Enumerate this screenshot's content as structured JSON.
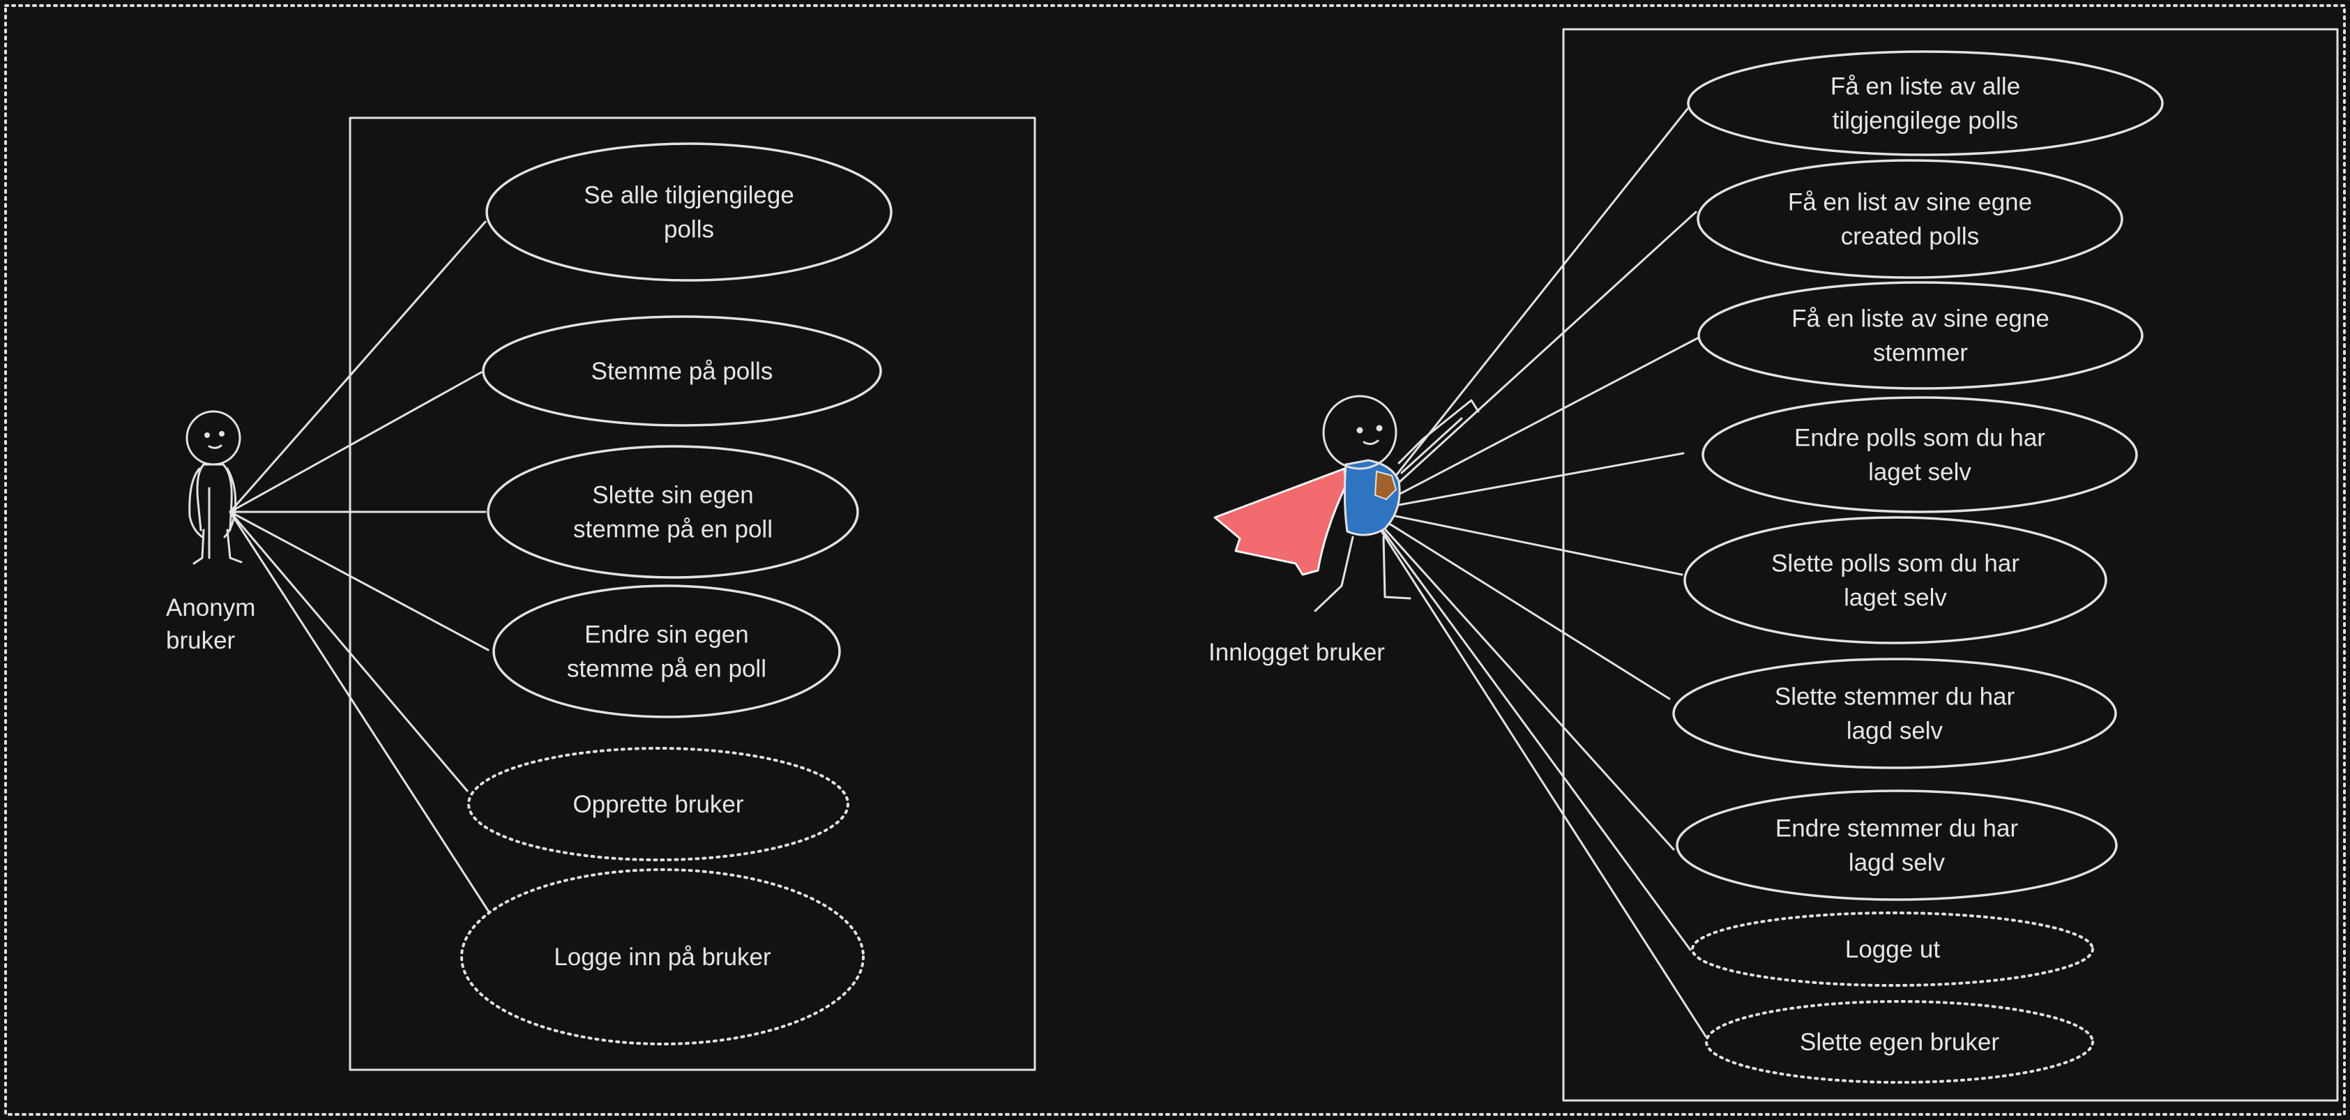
{
  "colors": {
    "background": "#121212",
    "line": "#e2e2e2",
    "text": "#e6e6e6",
    "cape": "#f26b6f",
    "suit": "#2f74c0",
    "emblem": "#a0622a"
  },
  "actors": [
    {
      "id": "anonym",
      "label_lines": [
        "Anonym",
        "bruker"
      ]
    },
    {
      "id": "innlogget",
      "label_lines": [
        "Innlogget bruker"
      ]
    }
  ],
  "use_cases": {
    "anonym": [
      {
        "lines": [
          "Se alle tilgjengilege",
          "polls"
        ],
        "style": "solid"
      },
      {
        "lines": [
          "Stemme på polls"
        ],
        "style": "solid"
      },
      {
        "lines": [
          "Slette sin egen",
          "stemme på en poll"
        ],
        "style": "solid"
      },
      {
        "lines": [
          "Endre sin egen",
          "stemme på en poll"
        ],
        "style": "solid"
      },
      {
        "lines": [
          "Opprette bruker"
        ],
        "style": "dotted"
      },
      {
        "lines": [
          "Logge inn på bruker"
        ],
        "style": "dotted"
      }
    ],
    "innlogget": [
      {
        "lines": [
          "Få en liste av alle",
          "tilgjengilege polls"
        ],
        "style": "solid"
      },
      {
        "lines": [
          "Få en list av sine egne",
          "created polls"
        ],
        "style": "solid"
      },
      {
        "lines": [
          "Få en liste av sine egne",
          "stemmer"
        ],
        "style": "solid"
      },
      {
        "lines": [
          "Endre polls som du har",
          "laget selv"
        ],
        "style": "solid"
      },
      {
        "lines": [
          "Slette polls som du har",
          "laget selv"
        ],
        "style": "solid"
      },
      {
        "lines": [
          "Slette stemmer du har",
          "lagd selv"
        ],
        "style": "solid"
      },
      {
        "lines": [
          "Endre stemmer du har",
          "lagd selv"
        ],
        "style": "solid"
      },
      {
        "lines": [
          "Logge ut"
        ],
        "style": "dotted"
      },
      {
        "lines": [
          "Slette egen bruker"
        ],
        "style": "dotted"
      }
    ]
  }
}
